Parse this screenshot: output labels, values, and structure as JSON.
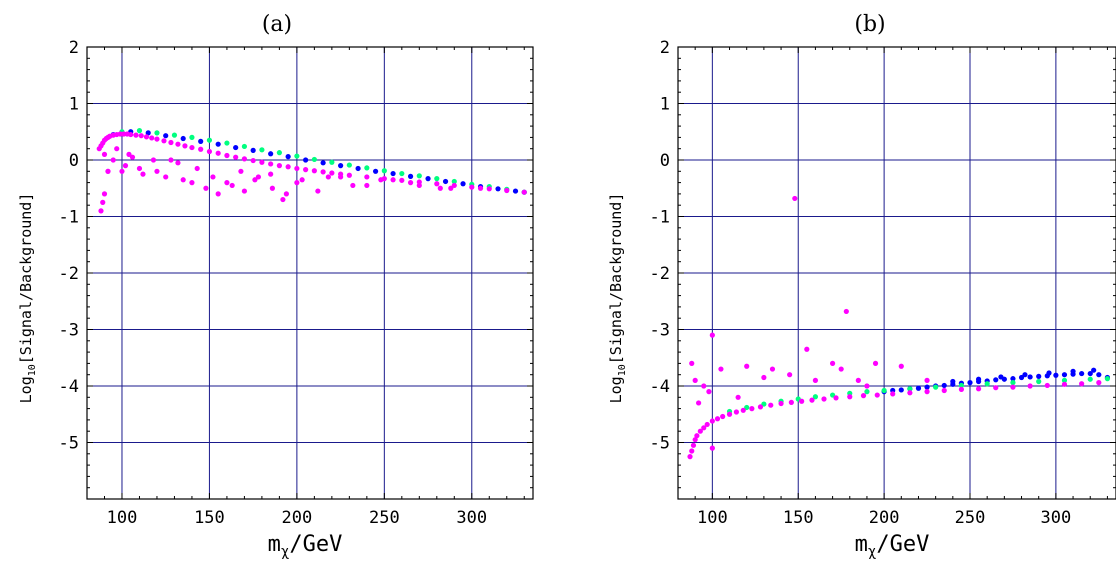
{
  "chart_data": [
    {
      "type": "scatter",
      "panel_label": "(a)",
      "xlabel_main": "m",
      "xlabel_sub": "χ",
      "xlabel_unit": "/GeV",
      "ylabel_main": "Log",
      "ylabel_sub": "10",
      "ylabel_rest": "[Signal/Background]",
      "xlim": [
        80,
        335
      ],
      "ylim": [
        -6,
        2
      ],
      "x_ticks": [
        100,
        150,
        200,
        250,
        300
      ],
      "y_ticks": [
        2,
        1,
        0,
        -1,
        -2,
        -3,
        -4,
        -5
      ],
      "y_tick_labels": [
        "2",
        "1",
        "0",
        "-1",
        "-2",
        "-3",
        "-4",
        "-5"
      ],
      "grid": true,
      "colors": {
        "magenta": "#ff00ff",
        "blue": "#0000ff",
        "green": "#00ff7f",
        "grid": "#1a1a8c"
      },
      "series": [
        {
          "color": "#0000ff",
          "x": [
            95,
            105,
            115,
            125,
            135,
            145,
            155,
            165,
            175,
            185,
            195,
            205,
            215,
            225,
            235,
            245,
            255,
            265,
            275,
            285,
            295,
            305,
            315,
            325,
            330
          ],
          "y": [
            0.45,
            0.5,
            0.48,
            0.43,
            0.38,
            0.33,
            0.28,
            0.22,
            0.17,
            0.11,
            0.06,
            0.0,
            -0.05,
            -0.1,
            -0.15,
            -0.2,
            -0.24,
            -0.29,
            -0.33,
            -0.38,
            -0.42,
            -0.47,
            -0.51,
            -0.55,
            -0.57
          ]
        },
        {
          "color": "#00ff7f",
          "x": [
            100,
            110,
            120,
            130,
            140,
            150,
            160,
            170,
            180,
            190,
            200,
            210,
            220,
            230,
            240,
            250,
            260,
            270,
            280,
            290,
            300,
            310,
            320,
            330
          ],
          "y": [
            0.5,
            0.52,
            0.48,
            0.44,
            0.4,
            0.35,
            0.3,
            0.24,
            0.18,
            0.13,
            0.07,
            0.01,
            -0.04,
            -0.09,
            -0.14,
            -0.19,
            -0.24,
            -0.28,
            -0.33,
            -0.38,
            -0.43,
            -0.47,
            -0.52,
            -0.57
          ]
        },
        {
          "color": "#ff00ff",
          "x": [
            87,
            88,
            89,
            90,
            91,
            92,
            93,
            95,
            97,
            99,
            101,
            103,
            105,
            108,
            111,
            114,
            117,
            120,
            124,
            128,
            132,
            136,
            140,
            145,
            150,
            155,
            160,
            165,
            170,
            175,
            180,
            185,
            190,
            195,
            200,
            205,
            210,
            215,
            220,
            225,
            230,
            240,
            250,
            260,
            270,
            280,
            290,
            300,
            310,
            320,
            330,
            90,
            95,
            100,
            104,
            110,
            118,
            125,
            132,
            140,
            148,
            155,
            163,
            170,
            178,
            186,
            192,
            200,
            212,
            225,
            240,
            255,
            270,
            288,
            305,
            92,
            97,
            102,
            106,
            112,
            120,
            128,
            135,
            143,
            152,
            160,
            168,
            176,
            185,
            194,
            203,
            218,
            232,
            248,
            265,
            282,
            88,
            89,
            90,
            92
          ],
          "y": [
            0.2,
            0.25,
            0.3,
            0.35,
            0.38,
            0.4,
            0.42,
            0.44,
            0.45,
            0.46,
            0.46,
            0.46,
            0.45,
            0.44,
            0.43,
            0.41,
            0.39,
            0.37,
            0.34,
            0.31,
            0.28,
            0.25,
            0.22,
            0.19,
            0.15,
            0.12,
            0.08,
            0.05,
            0.02,
            -0.01,
            -0.04,
            -0.07,
            -0.1,
            -0.12,
            -0.15,
            -0.17,
            -0.19,
            -0.21,
            -0.23,
            -0.25,
            -0.27,
            -0.3,
            -0.33,
            -0.36,
            -0.39,
            -0.42,
            -0.45,
            -0.48,
            -0.51,
            -0.54,
            -0.57,
            0.1,
            0.0,
            -0.2,
            0.1,
            -0.15,
            0.0,
            -0.3,
            -0.05,
            -0.4,
            -0.5,
            -0.6,
            -0.45,
            -0.55,
            -0.3,
            -0.5,
            -0.7,
            -0.4,
            -0.55,
            -0.3,
            -0.45,
            -0.35,
            -0.45,
            -0.5,
            -0.5,
            -0.2,
            0.2,
            -0.1,
            0.05,
            -0.25,
            -0.2,
            0.0,
            -0.35,
            -0.15,
            -0.3,
            -0.4,
            -0.2,
            -0.35,
            -0.25,
            -0.6,
            -0.35,
            -0.3,
            -0.45,
            -0.35,
            -0.4,
            -0.5,
            -0.9,
            -0.75,
            -0.6,
            -0.2
          ]
        }
      ]
    },
    {
      "type": "scatter",
      "panel_label": "(b)",
      "xlabel_main": "m",
      "xlabel_sub": "χ",
      "xlabel_unit": "/GeV",
      "ylabel_main": "Log",
      "ylabel_sub": "10",
      "ylabel_rest": "[Signal/Background]",
      "xlim": [
        80,
        335
      ],
      "ylim": [
        -6,
        2
      ],
      "x_ticks": [
        100,
        150,
        200,
        250,
        300
      ],
      "y_ticks": [
        2,
        1,
        0,
        -1,
        -2,
        -3,
        -4,
        -5
      ],
      "y_tick_labels": [
        "2",
        "1",
        "0",
        "-1",
        "-2",
        "-3",
        "-4",
        "-5"
      ],
      "grid": true,
      "colors": {
        "magenta": "#ff00ff",
        "blue": "#0000ff",
        "green": "#00ff7f",
        "grid": "#1a1a8c"
      },
      "series": [
        {
          "color": "#0000ff",
          "x": [
            200,
            205,
            210,
            215,
            220,
            225,
            230,
            235,
            240,
            245,
            250,
            255,
            260,
            265,
            270,
            275,
            280,
            285,
            290,
            295,
            300,
            305,
            310,
            315,
            320,
            325,
            330,
            240,
            255,
            268,
            282,
            296,
            310,
            322
          ],
          "y": [
            -4.1,
            -4.08,
            -4.07,
            -4.05,
            -4.04,
            -4.02,
            -4.0,
            -3.99,
            -3.97,
            -3.95,
            -3.94,
            -3.92,
            -3.91,
            -3.89,
            -3.88,
            -3.87,
            -3.85,
            -3.84,
            -3.83,
            -3.82,
            -3.81,
            -3.8,
            -3.79,
            -3.78,
            -3.78,
            -3.8,
            -3.85,
            -3.92,
            -3.88,
            -3.84,
            -3.8,
            -3.77,
            -3.74,
            -3.72
          ]
        },
        {
          "color": "#00ff7f",
          "x": [
            110,
            120,
            130,
            140,
            150,
            160,
            170,
            180,
            190,
            200,
            215,
            230,
            245,
            260,
            275,
            290,
            305,
            320,
            330
          ],
          "y": [
            -4.45,
            -4.38,
            -4.32,
            -4.27,
            -4.23,
            -4.19,
            -4.16,
            -4.13,
            -4.1,
            -4.08,
            -4.05,
            -4.02,
            -3.99,
            -3.96,
            -3.94,
            -3.92,
            -3.9,
            -3.88,
            -3.87
          ]
        },
        {
          "color": "#ff00ff",
          "x": [
            87,
            88,
            89,
            90,
            91,
            93,
            95,
            97,
            100,
            103,
            106,
            110,
            114,
            118,
            123,
            128,
            134,
            140,
            146,
            152,
            158,
            165,
            172,
            180,
            188,
            196,
            205,
            215,
            225,
            235,
            245,
            255,
            265,
            275,
            285,
            295,
            305,
            315,
            325,
            148,
            100,
            178,
            88,
            90,
            95,
            105,
            120,
            135,
            155,
            170,
            185,
            195,
            210,
            225,
            92,
            98,
            115,
            130,
            145,
            160,
            175,
            190,
            100
          ],
          "y": [
            -5.25,
            -5.15,
            -5.05,
            -4.95,
            -4.88,
            -4.8,
            -4.74,
            -4.68,
            -4.62,
            -4.58,
            -4.54,
            -4.5,
            -4.46,
            -4.43,
            -4.4,
            -4.37,
            -4.34,
            -4.31,
            -4.29,
            -4.27,
            -4.25,
            -4.23,
            -4.21,
            -4.19,
            -4.17,
            -4.16,
            -4.14,
            -4.12,
            -4.1,
            -4.08,
            -4.06,
            -4.05,
            -4.03,
            -4.02,
            -4.0,
            -3.99,
            -3.97,
            -3.96,
            -3.94,
            -0.68,
            -3.1,
            -2.68,
            -3.6,
            -3.9,
            -4.0,
            -3.7,
            -3.65,
            -3.7,
            -3.35,
            -3.6,
            -3.9,
            -3.6,
            -3.65,
            -3.9,
            -4.3,
            -4.1,
            -4.2,
            -3.85,
            -3.8,
            -3.9,
            -3.7,
            -4.0,
            -5.1
          ]
        }
      ]
    }
  ]
}
